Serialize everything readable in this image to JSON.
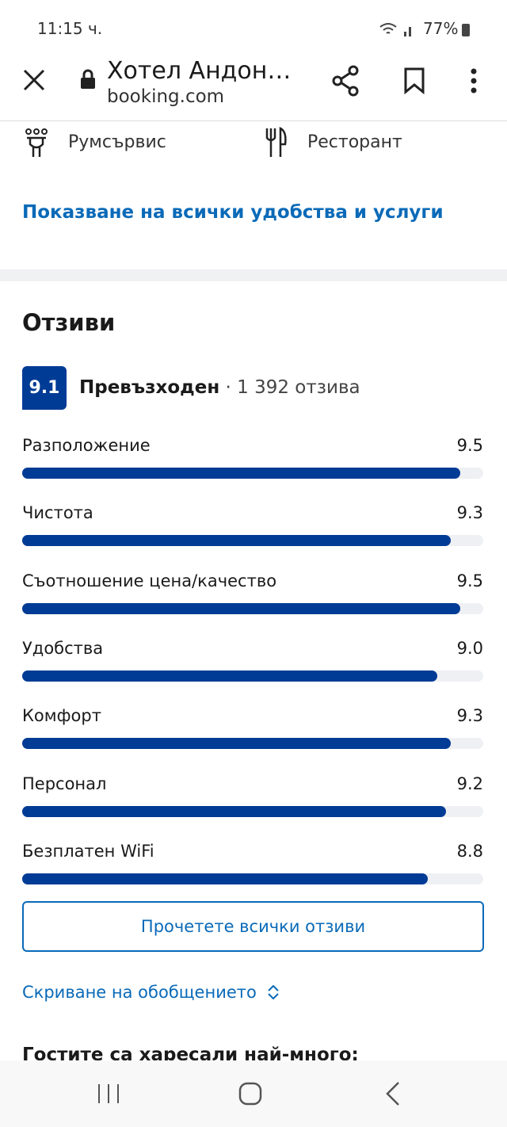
{
  "status_bar": {
    "time": "11:15 ч.",
    "battery": "77%"
  },
  "toolbar": {
    "title": "Хотел Андон…",
    "url": "booking.com"
  },
  "amenities": {
    "items": [
      "Румсървис",
      "Ресторант"
    ],
    "show_all_link": "Показване на всички удобства и услуги"
  },
  "reviews": {
    "heading": "Отзиви",
    "overall_score": "9.1",
    "rating_label": "Превъзходен",
    "review_count": "1 392 отзива",
    "rating_scale_max": 10,
    "categories": [
      {
        "name": "Разположение",
        "score": 9.5
      },
      {
        "name": "Чистота",
        "score": 9.3
      },
      {
        "name": "Съотношение цена/качество",
        "score": 9.5
      },
      {
        "name": "Удобства",
        "score": 9.0,
        "score_label": "9.0"
      },
      {
        "name": "Комфорт",
        "score": 9.3
      },
      {
        "name": "Персонал",
        "score": 9.2
      },
      {
        "name": "Безплатен WiFi",
        "score": 8.8
      }
    ],
    "read_all_button": "Прочетете всички отзиви",
    "hide_summary_link": "Скриване на обобщението",
    "next_heading": "Гостите са харесали най-много:"
  }
}
